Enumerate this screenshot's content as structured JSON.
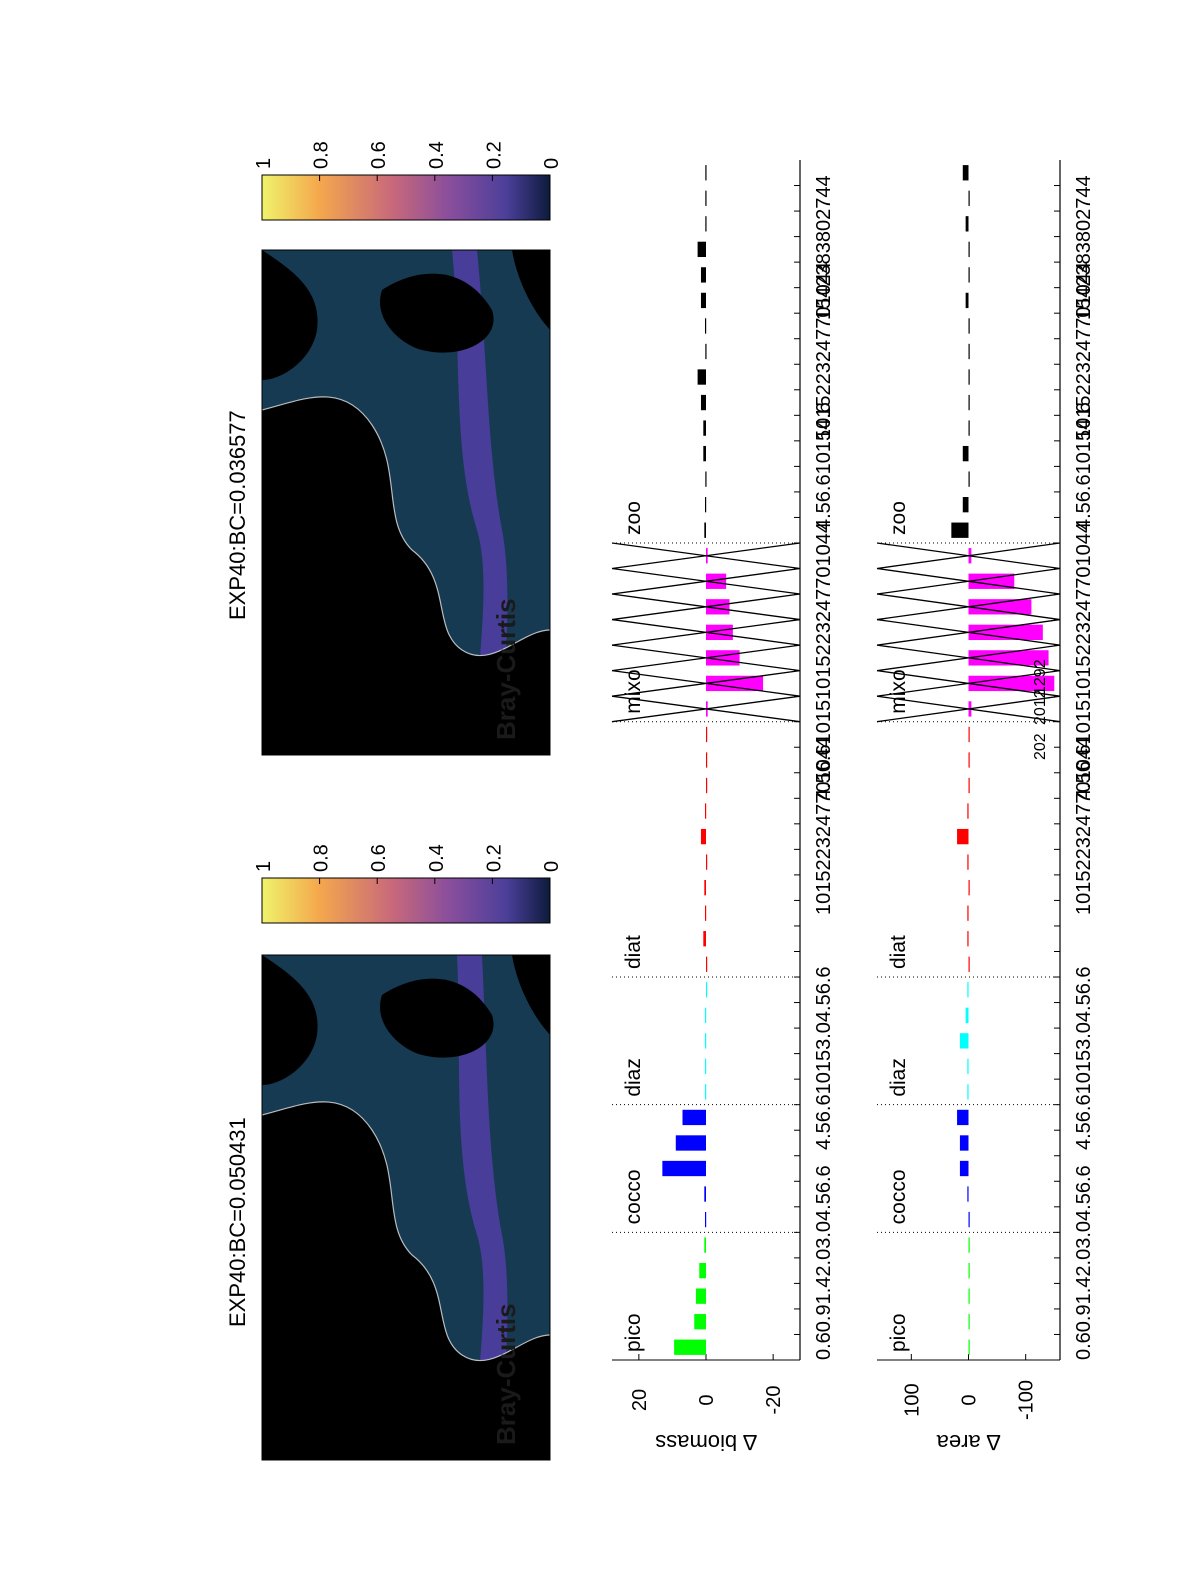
{
  "page": {
    "orientation": "rotated 90 degrees counter-clockwise"
  },
  "maps": [
    {
      "title": "EXP40:BC=0.050431",
      "label": "Bray-Curtis",
      "colorbar": {
        "ticks": [
          "1",
          "0.8",
          "0.6",
          "0.4",
          "0.2",
          "0"
        ],
        "range": [
          0,
          1
        ],
        "colormap": [
          "#f0f36b",
          "#f4a74d",
          "#c9697a",
          "#8a4e9c",
          "#4b3f9a",
          "#0d1b3b"
        ]
      },
      "colors": {
        "land": "#000000",
        "ocean": "#163a52",
        "band": "#6b4fb8",
        "coast": "#ffffff"
      }
    },
    {
      "title": "EXP40:BC=0.036577",
      "label": "Bray-Curtis",
      "colorbar": {
        "ticks": [
          "1",
          "0.8",
          "0.6",
          "0.4",
          "0.2",
          "0"
        ],
        "range": [
          0,
          1
        ],
        "colormap": [
          "#f0f36b",
          "#f4a74d",
          "#c9697a",
          "#8a4e9c",
          "#4b3f9a",
          "#0d1b3b"
        ]
      },
      "colors": {
        "land": "#000000",
        "ocean": "#163a52",
        "band": "#6b4fb8",
        "coast": "#ffffff"
      }
    }
  ],
  "chart_data": [
    {
      "type": "bar",
      "name": "biomass",
      "ylabel": "∆ biomass",
      "yticks": [
        "20",
        "0",
        "-20"
      ],
      "ylim": [
        -28,
        28
      ],
      "groups": [
        {
          "label": "pico",
          "color": "#00ff00",
          "values": [
            9.5,
            3.5,
            3,
            2,
            0.5
          ]
        },
        {
          "label": "cocco",
          "color": "#0000ff",
          "values": [
            0.3,
            0.5,
            13,
            9,
            7
          ]
        },
        {
          "label": "diaz",
          "color": "#00ffff",
          "values": [
            0.3,
            0.3,
            0.3,
            0.3,
            0
          ]
        },
        {
          "label": "diat",
          "color": "#ff0000",
          "values": [
            0,
            0.8,
            0.3,
            0.5,
            0,
            1.5,
            0.3,
            0,
            0,
            0
          ]
        },
        {
          "label": "mixo",
          "color": "#ff00ff",
          "values": [
            -0.5,
            -17,
            -10,
            -8,
            -7,
            -6,
            -0.5
          ]
        },
        {
          "label": "zoo",
          "color": "#000000",
          "values": [
            0.5,
            0.3,
            0.2,
            0.8,
            0.8,
            1.5,
            2.5,
            0.2,
            0.3,
            1.5,
            1.5,
            2.5,
            0.2,
            0.2,
            0.2
          ]
        }
      ]
    },
    {
      "type": "bar",
      "name": "area",
      "ylabel": "∆ area",
      "yticks": [
        "100",
        "0",
        "-100"
      ],
      "ylim": [
        -160,
        160
      ],
      "groups": [
        {
          "label": "pico",
          "color": "#00ff00",
          "values": [
            0,
            0,
            0,
            0,
            0
          ]
        },
        {
          "label": "cocco",
          "color": "#0000ff",
          "values": [
            0,
            2,
            15,
            15,
            20
          ]
        },
        {
          "label": "diaz",
          "color": "#00ffff",
          "values": [
            2,
            2,
            15,
            5,
            2
          ]
        },
        {
          "label": "diat",
          "color": "#ff0000",
          "values": [
            0,
            2,
            2,
            0,
            2,
            20,
            2,
            0,
            0,
            0
          ]
        },
        {
          "label": "mixo",
          "color": "#ff00ff",
          "values": [
            -5,
            -150,
            -140,
            -130,
            -110,
            -80,
            -5
          ]
        },
        {
          "label": "zoo",
          "color": "#000000",
          "values": [
            30,
            10,
            0,
            10,
            0,
            0,
            0,
            0,
            0,
            5,
            0,
            0,
            5,
            0,
            10
          ]
        }
      ]
    }
  ],
  "inner_labels": [
    "202",
    "2012",
    "1292"
  ],
  "axis_tick_labels": {
    "pico": "0.60.91.42.03.04.56.6",
    "cocco": "0.60.91.42.03.04.56.6",
    "diaz": "4.56.610153.04.56.6",
    "diat": "0153.04.56.610153.0",
    "diatmid": "1015223247701044",
    "mixo": "4.56.61015",
    "mixomid": "1015223247701044",
    "zoo": "4.56.610154.6",
    "zoomid": "1015223247701044",
    "zooend": "1542383802744"
  }
}
